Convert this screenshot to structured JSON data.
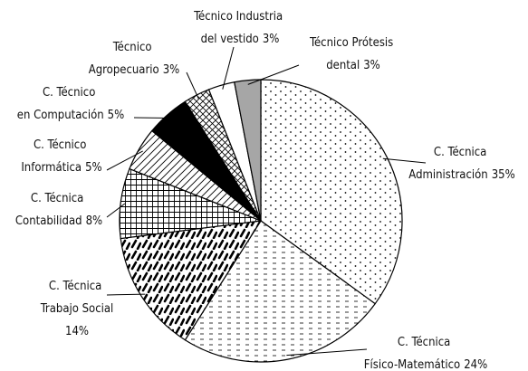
{
  "chart_data": {
    "type": "pie",
    "categories": [
      "C. Técnica Administración",
      "C. Técnica Físico-Matemático",
      "C. Técnica Trabajo Social",
      "C. Técnica Contabilidad",
      "C. Técnico Informática",
      "C. Técnico en Computación",
      "Técnico Agropecuario",
      "Técnico Industria del vestido",
      "Técnico Prótesis dental"
    ],
    "values": [
      35,
      24,
      14,
      8,
      5,
      5,
      3,
      3,
      3
    ],
    "value_labels": [
      "35%",
      "24%",
      "14%",
      "8%",
      "5%",
      "5%",
      "3%",
      "3%",
      "3%"
    ],
    "patterns": [
      "dots",
      "dashes",
      "strokes",
      "grid",
      "hatch",
      "black",
      "crosshatch",
      "white",
      "gray"
    ]
  }
}
